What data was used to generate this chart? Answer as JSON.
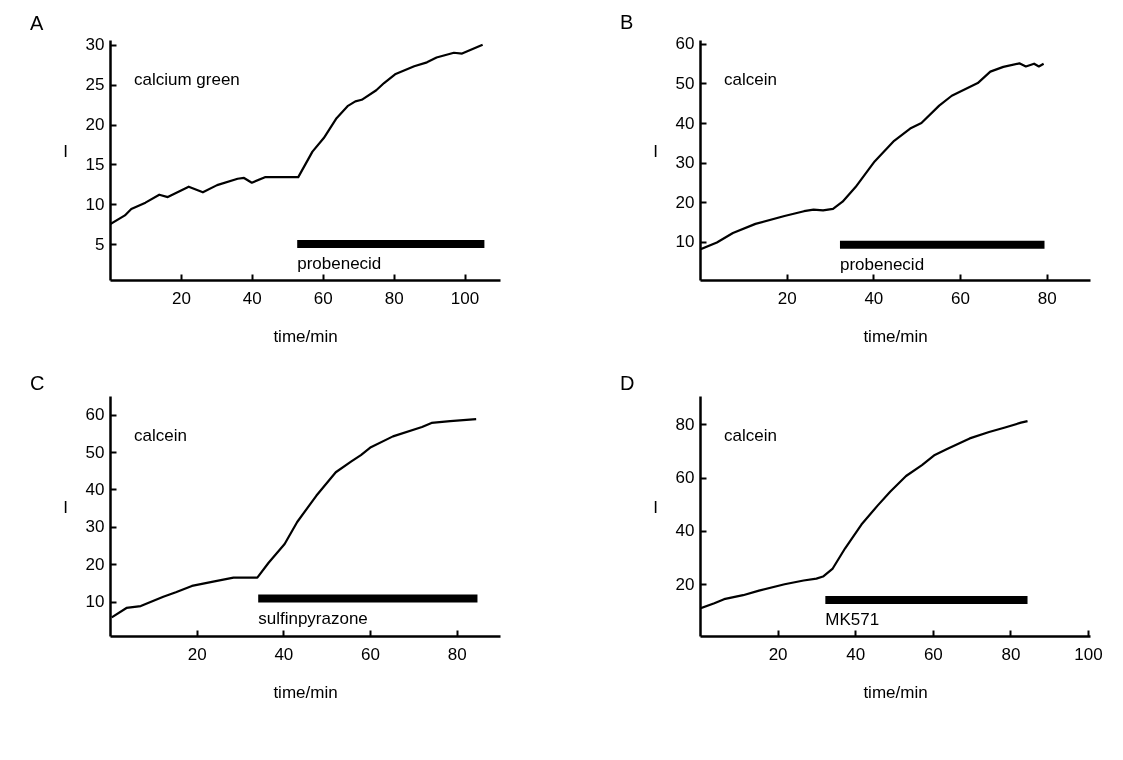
{
  "chart_data": [
    {
      "type": "line",
      "title": "A",
      "xlabel": "time/min",
      "ylabel": "I",
      "xlim": [
        0,
        110
      ],
      "ylim": [
        0.5,
        30.6
      ],
      "xticks": [
        20,
        40,
        60,
        80,
        100
      ],
      "yticks": [
        5,
        10,
        15,
        20,
        25,
        30
      ],
      "series": [
        {
          "color": "#000000",
          "x": [
            0,
            4.2,
            6,
            10,
            13.9,
            16.3,
            22.2,
            26.2,
            30.2,
            36,
            37.8,
            40,
            43.7,
            53.1,
            57.1,
            60.3,
            63.9,
            67,
            69.2,
            71,
            75.1,
            77.3,
            80.4,
            85.8,
            89.4,
            92.1,
            97,
            99.3,
            105.1
          ],
          "values": [
            7.5,
            8.6,
            9.4,
            10.2,
            11.2,
            10.9,
            12.2,
            11.5,
            12.4,
            13.2,
            13.3,
            12.7,
            13.4,
            13.4,
            16.6,
            18.3,
            20.8,
            22.3,
            22.9,
            23.1,
            24.3,
            25.2,
            26.3,
            27.3,
            27.8,
            28.4,
            29.0,
            28.9,
            30.0
          ]
        },
        {
          "color": "#000000",
          "x": [
            52.8,
            105.6
          ],
          "values": [
            5.0,
            5.0
          ]
        }
      ],
      "annotations": [
        "calcium green",
        "probenecid"
      ]
    },
    {
      "type": "line",
      "title": "B",
      "xlabel": "time/min",
      "ylabel": "I",
      "xlim": [
        0,
        90
      ],
      "ylim": [
        0.3,
        61
      ],
      "xticks": [
        20,
        40,
        60,
        80
      ],
      "yticks": [
        10,
        20,
        30,
        40,
        50,
        60
      ],
      "series": [
        {
          "color": "#000000",
          "x": [
            0,
            3.9,
            7.6,
            12.8,
            19.5,
            24,
            26.2,
            28.4,
            30.7,
            32.9,
            35.9,
            40.3,
            44.8,
            48.5,
            51.1,
            55.2,
            58.1,
            64.1,
            67,
            70,
            73.7,
            75.2,
            77.1,
            78.2,
            79.3
          ],
          "values": [
            8,
            9.8,
            12.2,
            14.5,
            16.5,
            17.7,
            18.1,
            17.9,
            18.3,
            20.1,
            23.8,
            30.3,
            35.5,
            38.6,
            40,
            44.4,
            46.9,
            50.1,
            53,
            54.2,
            55.1,
            54.3,
            55,
            54.3,
            55
          ]
        },
        {
          "color": "#000000",
          "x": [
            32.3,
            79.5
          ],
          "values": [
            9.2,
            9.2
          ]
        }
      ],
      "annotations": [
        "calcein",
        "probenecid"
      ]
    },
    {
      "type": "line",
      "title": "C",
      "xlabel": "time/min",
      "ylabel": "I",
      "xlim": [
        0,
        90
      ],
      "ylim": [
        0.8,
        65
      ],
      "xticks": [
        20,
        40,
        60,
        80
      ],
      "yticks": [
        10,
        20,
        30,
        40,
        50,
        60
      ],
      "series": [
        {
          "color": "#000000",
          "x": [
            0.4,
            3.8,
            7.1,
            12.3,
            15.2,
            18.9,
            24.1,
            28.5,
            34,
            36.6,
            40.3,
            43.2,
            47.6,
            52.1,
            55.7,
            57.9,
            60.2,
            65.3,
            72,
            74.2,
            78.5,
            84.5
          ],
          "values": [
            5.8,
            8.3,
            8.8,
            11.3,
            12.5,
            14.2,
            15.4,
            16.4,
            16.4,
            20.4,
            25.4,
            31.3,
            38.3,
            44.6,
            47.5,
            49.2,
            51.3,
            54.2,
            56.7,
            57.8,
            58.3,
            58.8
          ]
        },
        {
          "color": "#000000",
          "x": [
            34.2,
            84.8
          ],
          "values": [
            10.8,
            10.8
          ]
        }
      ],
      "annotations": [
        "calcein",
        "sulfinpyrazone"
      ]
    },
    {
      "type": "line",
      "title": "D",
      "xlabel": "time/min",
      "ylabel": "I",
      "xlim": [
        0,
        100.5
      ],
      "ylim": [
        0.6,
        90.6
      ],
      "xticks": [
        20,
        40,
        60,
        80,
        100
      ],
      "yticks": [
        20,
        40,
        60,
        80
      ],
      "series": [
        {
          "color": "#000000",
          "x": [
            0,
            3.7,
            6.2,
            11.1,
            15.2,
            21.8,
            26.7,
            30,
            31.7,
            34.2,
            37.4,
            41.6,
            45.7,
            49,
            53.1,
            57.2,
            60.5,
            63.8,
            69.5,
            74.5,
            78.6,
            82.7,
            84.4
          ],
          "values": [
            10.9,
            12.9,
            14.4,
            15.9,
            17.6,
            20,
            21.4,
            22.1,
            22.9,
            25.9,
            33.5,
            42.4,
            49.4,
            54.7,
            60.6,
            64.7,
            68.5,
            70.8,
            74.7,
            77.1,
            78.8,
            80.6,
            81.2
          ]
        },
        {
          "color": "#000000",
          "x": [
            32.3,
            84.4
          ],
          "values": [
            14.1,
            14.1
          ]
        }
      ],
      "annotations": [
        "calcein",
        "MK571"
      ]
    }
  ]
}
